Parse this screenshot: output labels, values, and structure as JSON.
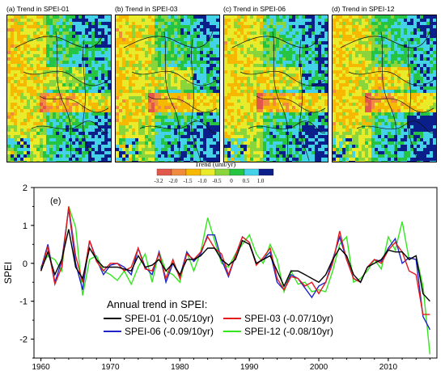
{
  "maps": [
    {
      "title": "(a) Trend in SPEI-01"
    },
    {
      "title": "(b) Trend in SPEI-03"
    },
    {
      "title": "(c) Trend in SPEI-06"
    },
    {
      "title": "(d) Trend in SPEI-12"
    }
  ],
  "colorbar": {
    "title": "Trend (unit/yr)",
    "ticks": [
      "-3.2",
      "-2.0",
      "-1.5",
      "-1.0",
      "-0.5",
      "0",
      "0.5",
      "1.0"
    ],
    "colors": [
      "#e2574c",
      "#f08a3c",
      "#f6b800",
      "#e8ea2a",
      "#8ad53b",
      "#26c443",
      "#44d2e8",
      "#0a1f8a"
    ]
  },
  "chart_data": {
    "type": "line",
    "panel_label": "(e)",
    "xlabel": "",
    "ylabel": "SPEI",
    "xlim": [
      1959,
      2017
    ],
    "ylim": [
      -2.5,
      2
    ],
    "xticks": [
      "1960",
      "1970",
      "1980",
      "1990",
      "2000",
      "2010"
    ],
    "yticks": [
      "-2",
      "-1",
      "0",
      "1",
      "2"
    ],
    "legend_title": "Annual trend in SPEI:",
    "legend_position": "bottom-center",
    "x": [
      1960,
      1961,
      1962,
      1963,
      1964,
      1965,
      1966,
      1967,
      1968,
      1969,
      1970,
      1971,
      1972,
      1973,
      1974,
      1975,
      1976,
      1977,
      1978,
      1979,
      1980,
      1981,
      1982,
      1983,
      1984,
      1985,
      1986,
      1987,
      1988,
      1989,
      1990,
      1991,
      1992,
      1993,
      1994,
      1995,
      1996,
      1997,
      1998,
      1999,
      2000,
      2001,
      2002,
      2003,
      2004,
      2005,
      2006,
      2007,
      2008,
      2009,
      2010,
      2011,
      2012,
      2013,
      2014,
      2015,
      2016
    ],
    "series": [
      {
        "name": "SPEI-01 (-0.05/10yr)",
        "color": "#000000",
        "values": [
          -0.2,
          0.3,
          -0.3,
          0.1,
          0.9,
          -0.1,
          -0.4,
          0.4,
          0.1,
          -0.1,
          -0.1,
          -0.1,
          -0.15,
          -0.2,
          0.2,
          -0.1,
          -0.05,
          0.1,
          -0.2,
          0.0,
          -0.3,
          0.1,
          0.1,
          0.2,
          0.4,
          0.4,
          0.1,
          -0.05,
          0.1,
          0.6,
          0.5,
          0.0,
          0.1,
          0.2,
          -0.2,
          -0.6,
          -0.2,
          -0.2,
          -0.3,
          -0.4,
          -0.5,
          -0.3,
          0.1,
          0.4,
          0.2,
          -0.3,
          -0.5,
          -0.1,
          0.0,
          0.1,
          0.35,
          0.3,
          0.3,
          0.1,
          0.2,
          -0.8,
          -1.0
        ]
      },
      {
        "name": "SPEI-03 (-0.07/10yr)",
        "color": "#e41a1c",
        "values": [
          -0.2,
          0.45,
          -0.55,
          -0.1,
          1.5,
          0.2,
          -0.5,
          0.6,
          0.05,
          -0.2,
          0.0,
          0.0,
          -0.2,
          -0.1,
          0.4,
          -0.15,
          -0.2,
          0.25,
          -0.4,
          0.1,
          -0.4,
          0.25,
          0.1,
          0.3,
          0.7,
          0.4,
          0.25,
          -0.3,
          0.2,
          0.7,
          0.55,
          -0.05,
          0.15,
          0.4,
          -0.4,
          -0.7,
          -0.35,
          -0.4,
          -0.6,
          -0.5,
          -0.8,
          -0.5,
          0.0,
          0.85,
          0.1,
          -0.4,
          -0.5,
          -0.1,
          0.1,
          0.0,
          0.35,
          0.55,
          0.3,
          -0.2,
          -0.3,
          -1.35,
          -1.35
        ]
      },
      {
        "name": "SPEI-06 (-0.09/10yr)",
        "color": "#1f24c8",
        "values": [
          -0.15,
          0.5,
          -0.5,
          0.05,
          1.45,
          0.0,
          -0.7,
          0.6,
          0.1,
          -0.3,
          -0.05,
          0.0,
          -0.1,
          -0.3,
          0.4,
          -0.1,
          -0.3,
          0.3,
          -0.5,
          0.0,
          -0.35,
          0.3,
          0.05,
          0.25,
          0.75,
          0.75,
          0.1,
          -0.35,
          0.2,
          0.7,
          0.55,
          0.0,
          0.1,
          0.3,
          -0.5,
          -0.7,
          -0.3,
          -0.4,
          -0.65,
          -0.9,
          -0.6,
          -0.5,
          0.1,
          0.7,
          0.1,
          -0.4,
          -0.5,
          -0.1,
          0.1,
          0.05,
          0.4,
          0.65,
          0.0,
          0.15,
          0.1,
          -1.4,
          -1.75
        ]
      },
      {
        "name": "SPEI-12 (-0.08/10yr)",
        "color": "#33e61e",
        "values": [
          -0.1,
          0.2,
          0.1,
          -0.2,
          1.5,
          0.95,
          -0.85,
          0.1,
          0.2,
          -0.2,
          -0.3,
          -0.45,
          -0.2,
          -0.55,
          -0.1,
          0.25,
          -0.5,
          0.3,
          -0.2,
          -0.3,
          -0.5,
          0.3,
          -0.2,
          0.3,
          1.2,
          0.6,
          0.0,
          -0.1,
          0.25,
          0.5,
          0.75,
          0.25,
          0.0,
          0.5,
          0.1,
          -0.75,
          -0.2,
          -0.55,
          -0.5,
          -0.75,
          -0.7,
          -0.75,
          -0.2,
          0.5,
          0.7,
          -0.5,
          -0.4,
          -0.2,
          0.1,
          -0.15,
          0.7,
          0.35,
          1.1,
          0.1,
          0.2,
          -0.6,
          -2.4
        ]
      }
    ]
  }
}
